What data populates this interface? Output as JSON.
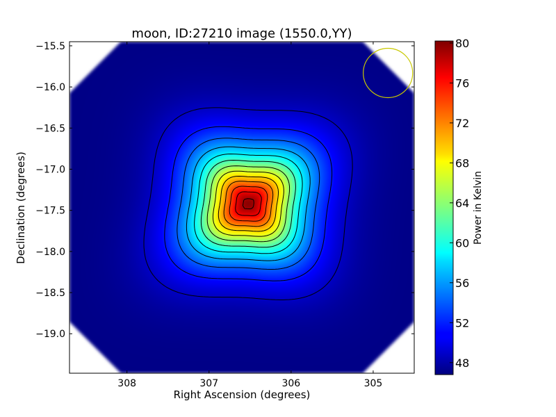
{
  "chart_data": {
    "type": "heatmap",
    "title": "moon, ID:27210 image (1550.0,YY)",
    "xlabel": "Right Ascension (degrees)",
    "ylabel": "Declination (degrees)",
    "xlim": [
      308.7,
      304.5
    ],
    "ylim": [
      -19.48,
      -15.45
    ],
    "x_ticks": [
      308,
      307,
      306,
      305
    ],
    "x_tick_labels": [
      "308",
      "307",
      "306",
      "305"
    ],
    "y_ticks": [
      -15.5,
      -16.0,
      -16.5,
      -17.0,
      -17.5,
      -18.0,
      -18.5,
      -19.0
    ],
    "y_tick_labels": [
      "−15.5",
      "−16.0",
      "−16.5",
      "−17.0",
      "−17.5",
      "−18.0",
      "−18.5",
      "−19.0"
    ],
    "colorbar": {
      "label": "Power in Kelvin",
      "range": [
        46.8,
        80.2
      ],
      "ticks": [
        48,
        52,
        56,
        60,
        64,
        68,
        72,
        76,
        80
      ],
      "tick_labels": [
        "48",
        "52",
        "56",
        "60",
        "64",
        "68",
        "72",
        "76",
        "80"
      ],
      "colormap": "jet"
    },
    "source": {
      "ra": 306.52,
      "dec": -17.42,
      "peak_kelvin": 80,
      "background_kelvin": 47,
      "orientation_deg": 40,
      "size_deg": [
        0.42,
        0.4
      ],
      "lobe_strength": 0.09,
      "lobe_count": 4
    },
    "contour_levels": [
      49,
      51.5,
      54,
      56.5,
      59,
      61.5,
      64,
      66.5,
      69,
      71.5,
      74,
      76.5,
      79
    ],
    "field_of_view": "octagon",
    "beam_marker": {
      "ra": 304.82,
      "dec": -15.83,
      "radius_deg": 0.3,
      "color": "#c8c800"
    }
  }
}
